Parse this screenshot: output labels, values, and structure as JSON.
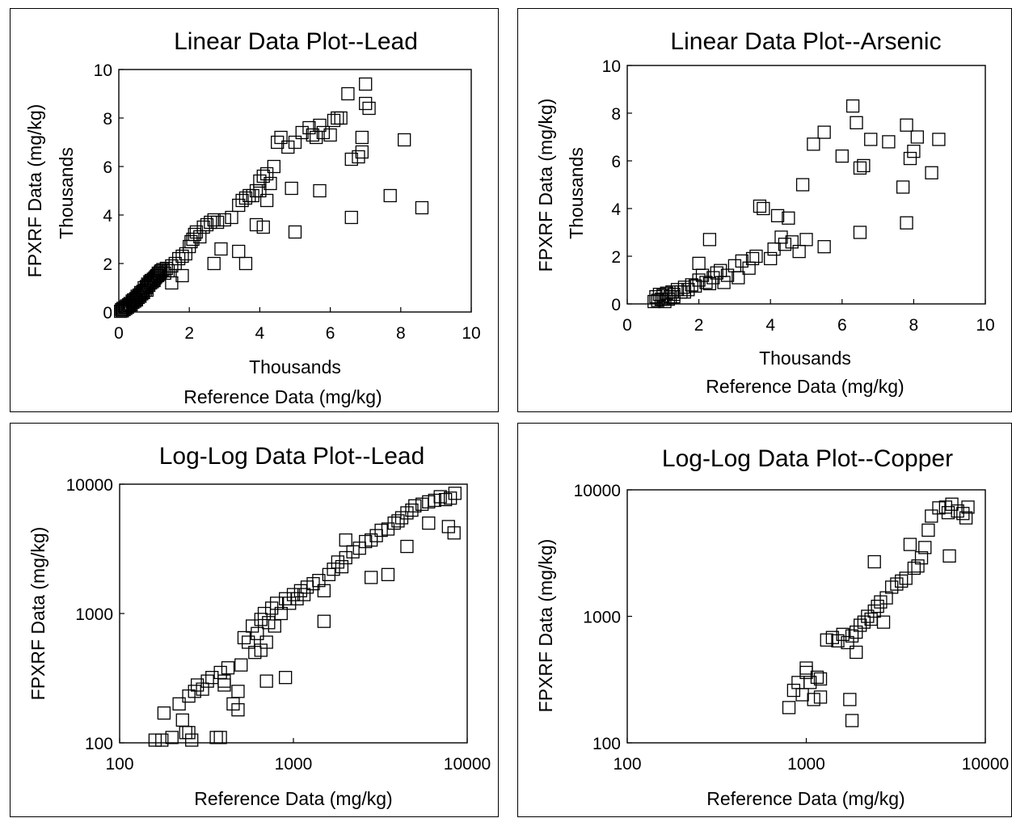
{
  "chart_data": [
    {
      "type": "scatter",
      "title": "Linear Data Plot--Lead",
      "xlabel": "Reference Data (mg/kg)",
      "xlabel_units": "Thousands",
      "ylabel": "FPXRF Data (mg/kg)",
      "ylabel_units": "Thousands",
      "xscale": "linear",
      "yscale": "linear",
      "xlim": [
        0,
        10
      ],
      "ylim": [
        0,
        10
      ],
      "xticks": [
        "0",
        "2",
        "4",
        "6",
        "8",
        "10"
      ],
      "yticks": [
        "0",
        "2",
        "4",
        "6",
        "8",
        "10"
      ],
      "marker": "open-square",
      "x": [
        0.05,
        0.08,
        0.1,
        0.12,
        0.15,
        0.18,
        0.2,
        0.22,
        0.25,
        0.28,
        0.3,
        0.32,
        0.35,
        0.38,
        0.4,
        0.42,
        0.45,
        0.48,
        0.5,
        0.52,
        0.55,
        0.58,
        0.6,
        0.62,
        0.65,
        0.68,
        0.7,
        0.72,
        0.75,
        0.78,
        0.8,
        0.82,
        0.85,
        0.88,
        0.9,
        0.92,
        0.95,
        0.98,
        1.0,
        1.02,
        1.05,
        1.08,
        1.1,
        1.12,
        1.15,
        1.18,
        1.2,
        1.25,
        1.3,
        1.35,
        1.4,
        1.5,
        1.6,
        1.7,
        1.8,
        1.9,
        2.0,
        2.05,
        2.1,
        2.15,
        2.2,
        2.3,
        2.4,
        2.5,
        2.6,
        2.7,
        2.8,
        3.0,
        3.2,
        3.4,
        3.5,
        3.6,
        3.7,
        3.8,
        3.9,
        4.0,
        4.0,
        4.1,
        4.2,
        4.3,
        4.4,
        4.5,
        4.6,
        4.8,
        5.0,
        5.2,
        5.4,
        5.5,
        5.6,
        5.7,
        5.8,
        6.0,
        6.1,
        6.2,
        6.3,
        6.5,
        6.6,
        6.8,
        6.9,
        7.0,
        7.0,
        7.1,
        7.7,
        8.1,
        8.6,
        1.8,
        2.7,
        3.4,
        3.6,
        4.1,
        5.0,
        5.7,
        6.6,
        0.8,
        1.5,
        2.9,
        3.9,
        4.9,
        4.2,
        6.9
      ],
      "y": [
        0.03,
        0.1,
        0.05,
        0.15,
        0.1,
        0.2,
        0.15,
        0.25,
        0.2,
        0.3,
        0.28,
        0.35,
        0.3,
        0.45,
        0.4,
        0.5,
        0.45,
        0.55,
        0.5,
        0.65,
        0.6,
        0.7,
        0.65,
        0.8,
        0.75,
        0.85,
        0.8,
        1.0,
        0.9,
        1.05,
        1.0,
        1.15,
        1.1,
        1.25,
        1.2,
        1.3,
        1.25,
        1.35,
        1.3,
        1.4,
        1.45,
        1.5,
        1.5,
        1.6,
        1.55,
        1.65,
        1.7,
        1.75,
        1.6,
        1.8,
        1.7,
        1.9,
        2.0,
        2.2,
        2.3,
        2.4,
        2.7,
        2.9,
        3.0,
        3.2,
        3.3,
        3.1,
        3.5,
        3.6,
        3.7,
        3.8,
        3.7,
        3.8,
        3.9,
        4.4,
        4.6,
        4.7,
        4.8,
        4.8,
        5.0,
        5.0,
        5.4,
        5.6,
        5.7,
        5.3,
        6.0,
        7.0,
        7.2,
        6.8,
        7.0,
        7.4,
        7.6,
        7.3,
        7.2,
        7.7,
        7.4,
        7.3,
        7.9,
        8.0,
        8.0,
        9.0,
        6.3,
        6.4,
        6.6,
        9.4,
        8.6,
        8.4,
        4.8,
        7.1,
        4.3,
        1.5,
        2.0,
        2.5,
        2.0,
        3.5,
        3.3,
        5.0,
        3.9,
        0.9,
        1.2,
        2.6,
        3.6,
        5.1,
        4.6,
        7.2
      ]
    },
    {
      "type": "scatter",
      "title": "Linear Data Plot--Arsenic",
      "xlabel": "Reference Data (mg/kg)",
      "xlabel_units": "Thousands",
      "ylabel": "FPXRF Data (mg/kg)",
      "ylabel_units": "Thousands",
      "xscale": "linear",
      "yscale": "linear",
      "xlim": [
        0,
        10
      ],
      "ylim": [
        0,
        10
      ],
      "xticks": [
        "0",
        "2",
        "4",
        "6",
        "8",
        "10"
      ],
      "yticks": [
        "0",
        "2",
        "4",
        "6",
        "8",
        "10"
      ],
      "marker": "open-square",
      "x": [
        0.75,
        0.8,
        0.85,
        0.9,
        0.95,
        1.0,
        1.05,
        1.1,
        1.15,
        1.2,
        1.25,
        1.3,
        1.4,
        1.5,
        1.6,
        1.7,
        1.8,
        1.9,
        2.0,
        2.1,
        2.2,
        2.3,
        2.4,
        2.5,
        2.6,
        2.8,
        3.0,
        3.2,
        3.4,
        3.6,
        3.7,
        3.8,
        4.0,
        4.2,
        4.3,
        4.4,
        4.5,
        4.6,
        4.8,
        5.0,
        5.2,
        5.5,
        6.0,
        6.3,
        6.4,
        6.5,
        6.6,
        6.8,
        7.3,
        7.7,
        7.8,
        7.9,
        8.0,
        8.1,
        8.5,
        8.7,
        1.0,
        1.3,
        1.6,
        2.0,
        2.3,
        2.7,
        3.1,
        3.5,
        4.1,
        4.9,
        5.5,
        6.5,
        7.8
      ],
      "y": [
        0.1,
        0.3,
        0.15,
        0.4,
        0.2,
        0.35,
        0.1,
        0.45,
        0.2,
        0.3,
        0.5,
        0.4,
        0.6,
        0.5,
        0.7,
        0.6,
        0.8,
        0.75,
        1.0,
        1.2,
        0.9,
        0.85,
        1.1,
        1.3,
        1.4,
        1.2,
        1.6,
        1.8,
        1.5,
        2.0,
        4.1,
        4.0,
        1.9,
        3.7,
        2.8,
        2.5,
        3.6,
        2.6,
        2.2,
        2.7,
        6.7,
        7.2,
        6.2,
        8.3,
        7.6,
        5.7,
        5.8,
        6.9,
        6.8,
        4.9,
        7.5,
        6.1,
        6.4,
        7.0,
        5.5,
        6.9,
        0.2,
        0.3,
        0.5,
        1.7,
        2.7,
        0.9,
        1.1,
        1.9,
        2.3,
        5.0,
        2.4,
        3.0,
        3.4
      ]
    },
    {
      "type": "scatter",
      "title": "Log-Log Data Plot--Lead",
      "xlabel": "Reference Data (mg/kg)",
      "ylabel": "FPXRF Data (mg/kg)",
      "xscale": "log",
      "yscale": "log",
      "xlim": [
        100,
        10000
      ],
      "ylim": [
        100,
        10000
      ],
      "xticks": [
        "100",
        "1000",
        "10000"
      ],
      "yticks": [
        "100",
        "1000",
        "10000"
      ],
      "marker": "open-square",
      "x": [
        160,
        175,
        180,
        200,
        220,
        240,
        250,
        260,
        270,
        280,
        300,
        320,
        340,
        360,
        380,
        400,
        420,
        450,
        480,
        500,
        520,
        550,
        580,
        600,
        620,
        650,
        680,
        700,
        720,
        750,
        780,
        800,
        850,
        900,
        950,
        1000,
        1050,
        1100,
        1150,
        1200,
        1300,
        1400,
        1500,
        1600,
        1700,
        1800,
        1900,
        2000,
        2200,
        2400,
        2600,
        2800,
        3000,
        3200,
        3500,
        3800,
        4000,
        4200,
        4500,
        4800,
        5000,
        5500,
        6000,
        6500,
        7000,
        7500,
        8000,
        8500,
        900,
        1500,
        2800,
        380,
        250,
        230,
        400,
        480,
        650,
        700,
        4500,
        6000,
        7800,
        8400,
        3500,
        2000
      ],
      "y": [
        105,
        105,
        170,
        110,
        200,
        120,
        230,
        105,
        250,
        280,
        260,
        300,
        320,
        110,
        350,
        300,
        380,
        200,
        250,
        400,
        650,
        600,
        800,
        500,
        700,
        900,
        1000,
        600,
        850,
        1100,
        800,
        1200,
        1000,
        1300,
        1200,
        1400,
        1300,
        1500,
        1400,
        1600,
        1700,
        1800,
        1500,
        2000,
        2200,
        2500,
        2300,
        2700,
        3000,
        3200,
        3600,
        3700,
        4000,
        4400,
        4500,
        5000,
        5200,
        5500,
        6000,
        6300,
        6800,
        7000,
        7300,
        7500,
        8000,
        7600,
        7800,
        8500,
        320,
        870,
        1900,
        110,
        120,
        150,
        280,
        180,
        520,
        300,
        3300,
        5000,
        4700,
        4200,
        2000,
        3700
      ]
    },
    {
      "type": "scatter",
      "title": "Log-Log Data Plot--Copper",
      "xlabel": "Reference Data (mg/kg)",
      "ylabel": "FPXRF Data (mg/kg)",
      "xscale": "log",
      "yscale": "log",
      "xlim": [
        100,
        10000
      ],
      "ylim": [
        100,
        10000
      ],
      "xticks": [
        "100",
        "1000",
        "10000"
      ],
      "yticks": [
        "100",
        "1000",
        "10000"
      ],
      "marker": "open-square",
      "x": [
        800,
        850,
        900,
        950,
        1000,
        1050,
        1100,
        1150,
        1200,
        1300,
        1400,
        1500,
        1600,
        1700,
        1800,
        1900,
        2000,
        2100,
        2200,
        2300,
        2400,
        2500,
        2600,
        2700,
        2800,
        3000,
        3200,
        3400,
        3600,
        3800,
        4000,
        4200,
        4400,
        4600,
        4800,
        5000,
        5500,
        6000,
        6200,
        6500,
        7000,
        7500,
        7800,
        8000,
        1750,
        1900,
        2400,
        1800,
        6300,
        1000,
        1200
      ],
      "y": [
        190,
        260,
        300,
        240,
        360,
        300,
        220,
        330,
        320,
        650,
        680,
        640,
        720,
        620,
        700,
        750,
        850,
        900,
        1000,
        950,
        1100,
        1200,
        1300,
        900,
        1400,
        1700,
        1800,
        1900,
        2000,
        3700,
        2400,
        2500,
        2900,
        3500,
        4800,
        6200,
        7200,
        7300,
        6600,
        7700,
        6800,
        6500,
        6000,
        7300,
        220,
        520,
        2700,
        150,
        3000,
        390,
        230
      ]
    }
  ]
}
